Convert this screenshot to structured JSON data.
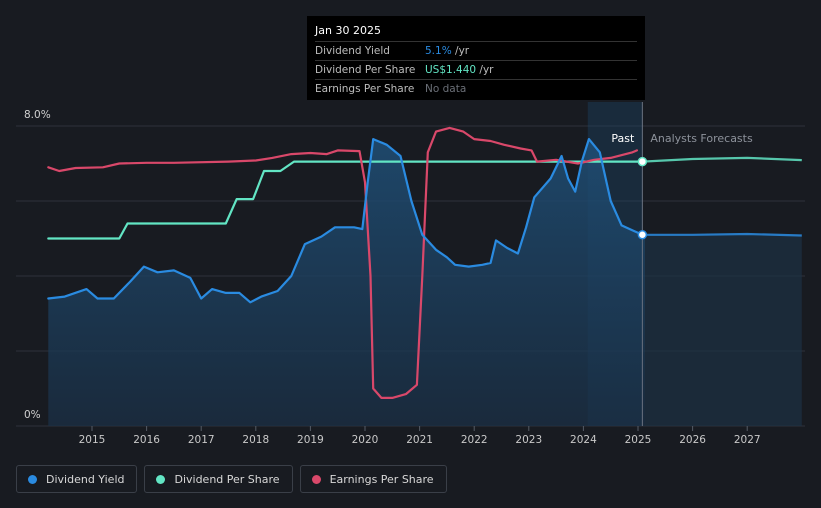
{
  "colors": {
    "background": "#181b21",
    "dividend_yield": "#2a8be1",
    "dividend_per_share": "#62e5c4",
    "earnings_per_share": "#d9486a",
    "grid": "#2e323a"
  },
  "tooltip": {
    "date": "Jan 30 2025",
    "rows": [
      {
        "label": "Dividend Yield",
        "value": "5.1%",
        "suffix": " /yr"
      },
      {
        "label": "Dividend Per Share",
        "value": "US$1.440",
        "suffix": " /yr"
      },
      {
        "label": "Earnings Per Share",
        "value": "No data",
        "suffix": ""
      }
    ]
  },
  "legend": {
    "items": [
      {
        "label": "Dividend Yield",
        "icon": "circle",
        "color": "#2a8be1"
      },
      {
        "label": "Dividend Per Share",
        "icon": "circle",
        "color": "#62e5c4"
      },
      {
        "label": "Earnings Per Share",
        "icon": "circle",
        "color": "#d9486a"
      }
    ]
  },
  "chart_data": {
    "type": "line",
    "title": "",
    "xlabel": "",
    "ylabel": "",
    "ylim": [
      0,
      8
    ],
    "xlim": [
      2014.2,
      2028.0
    ],
    "y_tick_labels": [
      "8.0%",
      "0%"
    ],
    "x_ticks": [
      2015,
      2016,
      2017,
      2018,
      2019,
      2020,
      2021,
      2022,
      2023,
      2024,
      2025,
      2026,
      2027
    ],
    "past_label": "Past",
    "forecast_label": "Analysts Forecasts",
    "divider_x": 2025.08,
    "series": [
      {
        "name": "Dividend Yield",
        "unit": "%",
        "points": [
          [
            2014.2,
            3.4
          ],
          [
            2014.5,
            3.45
          ],
          [
            2014.9,
            3.65
          ],
          [
            2015.1,
            3.4
          ],
          [
            2015.4,
            3.4
          ],
          [
            2015.7,
            3.85
          ],
          [
            2015.95,
            4.25
          ],
          [
            2016.2,
            4.1
          ],
          [
            2016.5,
            4.15
          ],
          [
            2016.8,
            3.95
          ],
          [
            2017.0,
            3.4
          ],
          [
            2017.2,
            3.65
          ],
          [
            2017.45,
            3.55
          ],
          [
            2017.7,
            3.55
          ],
          [
            2017.9,
            3.3
          ],
          [
            2018.1,
            3.45
          ],
          [
            2018.4,
            3.6
          ],
          [
            2018.65,
            4.0
          ],
          [
            2018.9,
            4.85
          ],
          [
            2019.2,
            5.05
          ],
          [
            2019.45,
            5.3
          ],
          [
            2019.8,
            5.3
          ],
          [
            2019.95,
            5.25
          ],
          [
            2020.05,
            6.5
          ],
          [
            2020.15,
            7.65
          ],
          [
            2020.4,
            7.5
          ],
          [
            2020.65,
            7.2
          ],
          [
            2020.85,
            6.0
          ],
          [
            2021.05,
            5.1
          ],
          [
            2021.3,
            4.7
          ],
          [
            2021.5,
            4.5
          ],
          [
            2021.65,
            4.3
          ],
          [
            2021.9,
            4.25
          ],
          [
            2022.15,
            4.3
          ],
          [
            2022.3,
            4.35
          ],
          [
            2022.4,
            4.95
          ],
          [
            2022.6,
            4.75
          ],
          [
            2022.8,
            4.6
          ],
          [
            2022.95,
            5.3
          ],
          [
            2023.1,
            6.1
          ],
          [
            2023.4,
            6.6
          ],
          [
            2023.6,
            7.2
          ],
          [
            2023.72,
            6.6
          ],
          [
            2023.85,
            6.25
          ],
          [
            2023.97,
            7.05
          ],
          [
            2024.1,
            7.65
          ],
          [
            2024.3,
            7.3
          ],
          [
            2024.5,
            6.0
          ],
          [
            2024.7,
            5.35
          ],
          [
            2024.85,
            5.25
          ],
          [
            2025.08,
            5.1
          ],
          [
            2026.0,
            5.1
          ],
          [
            2027.0,
            5.12
          ],
          [
            2028.0,
            5.08
          ]
        ]
      },
      {
        "name": "Dividend Per Share",
        "unit": "US$",
        "points": [
          [
            2014.2,
            5.0
          ],
          [
            2015.5,
            5.0
          ],
          [
            2015.65,
            5.4
          ],
          [
            2017.45,
            5.4
          ],
          [
            2017.65,
            6.05
          ],
          [
            2017.95,
            6.05
          ],
          [
            2018.15,
            6.8
          ],
          [
            2018.45,
            6.8
          ],
          [
            2018.7,
            7.05
          ],
          [
            2025.08,
            7.05
          ],
          [
            2026.0,
            7.12
          ],
          [
            2027.0,
            7.15
          ],
          [
            2028.0,
            7.09
          ]
        ]
      },
      {
        "name": "Earnings Per Share",
        "unit": "US$",
        "points": [
          [
            2014.2,
            6.9
          ],
          [
            2014.4,
            6.8
          ],
          [
            2014.7,
            6.88
          ],
          [
            2015.2,
            6.9
          ],
          [
            2015.5,
            7.0
          ],
          [
            2016.0,
            7.02
          ],
          [
            2016.5,
            7.02
          ],
          [
            2017.5,
            7.05
          ],
          [
            2018.0,
            7.08
          ],
          [
            2018.3,
            7.15
          ],
          [
            2018.65,
            7.25
          ],
          [
            2019.0,
            7.28
          ],
          [
            2019.3,
            7.25
          ],
          [
            2019.5,
            7.35
          ],
          [
            2019.9,
            7.33
          ],
          [
            2020.0,
            6.5
          ],
          [
            2020.1,
            4.0
          ],
          [
            2020.15,
            1.0
          ],
          [
            2020.3,
            0.75
          ],
          [
            2020.5,
            0.75
          ],
          [
            2020.75,
            0.85
          ],
          [
            2020.95,
            1.1
          ],
          [
            2021.05,
            4.0
          ],
          [
            2021.15,
            7.3
          ],
          [
            2021.3,
            7.85
          ],
          [
            2021.55,
            7.95
          ],
          [
            2021.8,
            7.85
          ],
          [
            2022.0,
            7.65
          ],
          [
            2022.3,
            7.6
          ],
          [
            2022.55,
            7.5
          ],
          [
            2022.85,
            7.4
          ],
          [
            2023.05,
            7.35
          ],
          [
            2023.15,
            7.05
          ],
          [
            2023.5,
            7.1
          ],
          [
            2023.9,
            7.0
          ],
          [
            2024.2,
            7.1
          ],
          [
            2024.5,
            7.15
          ],
          [
            2024.9,
            7.3
          ],
          [
            2024.98,
            7.35
          ]
        ]
      }
    ],
    "markers": [
      {
        "series": "Dividend Per Share",
        "x": 2025.08,
        "y": 7.05
      },
      {
        "series": "Dividend Yield",
        "x": 2025.08,
        "y": 5.1
      }
    ]
  }
}
